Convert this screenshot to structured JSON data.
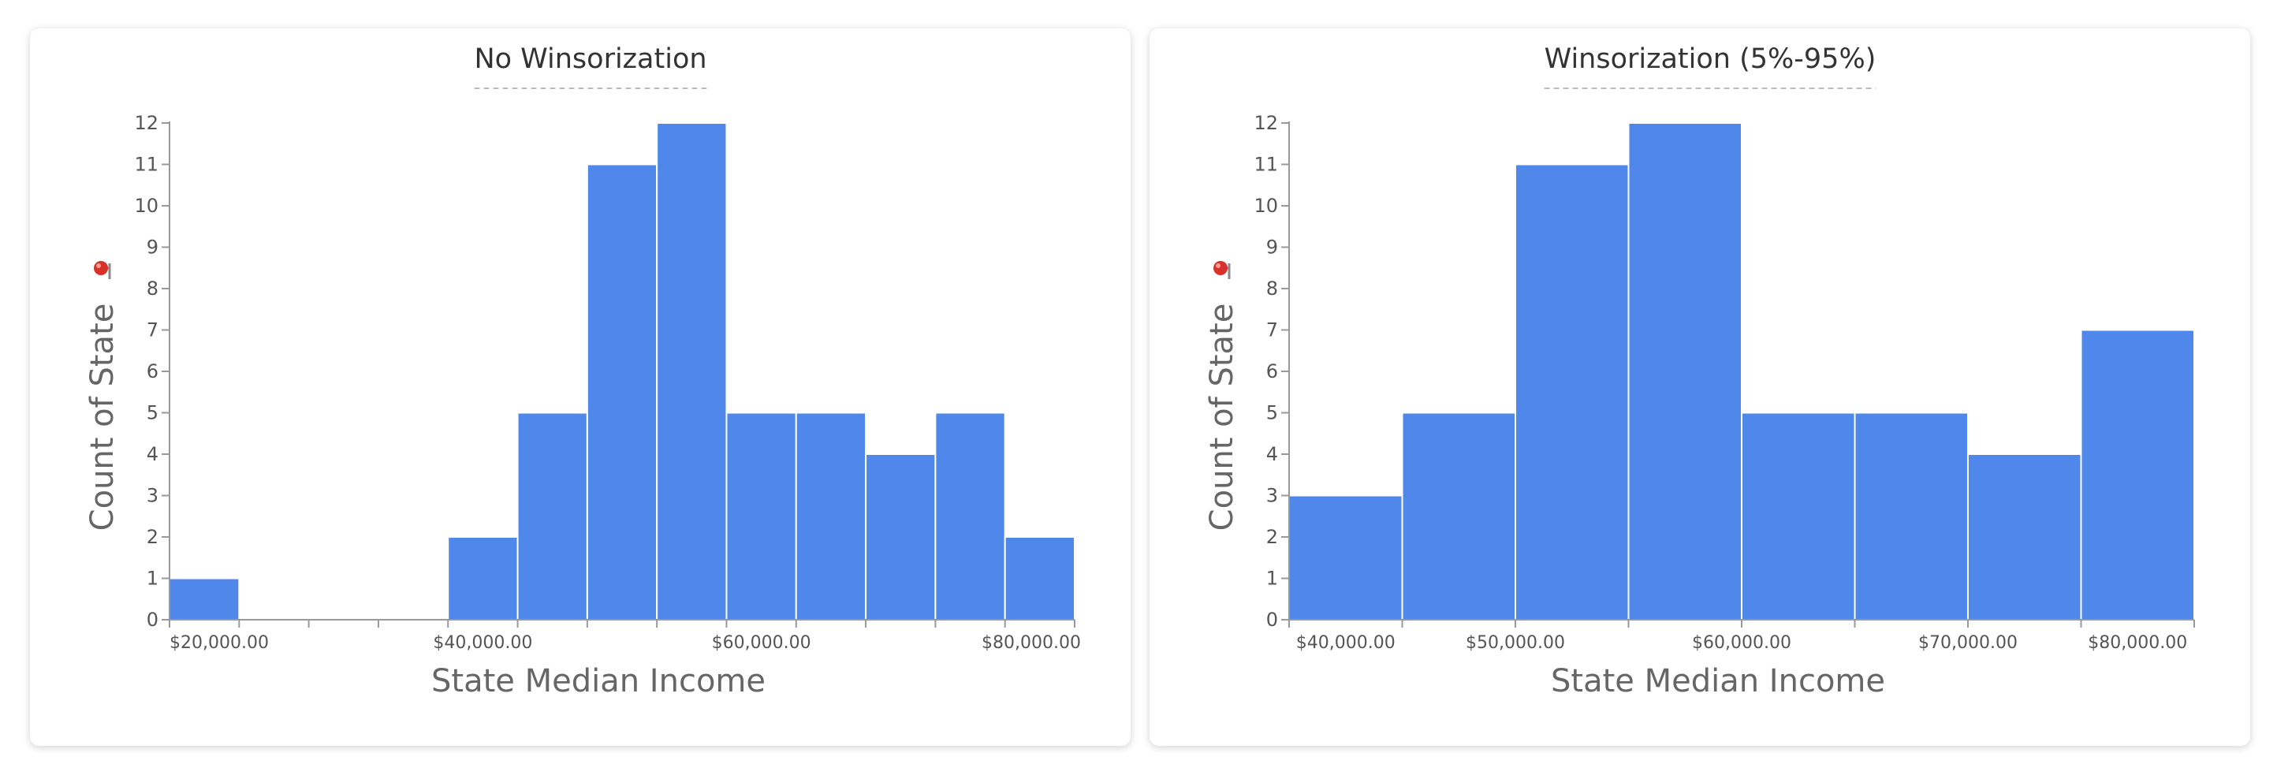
{
  "chart_data": [
    {
      "type": "bar",
      "title": "No Winsorization",
      "xlabel": "State Median Income",
      "ylabel": "Count of State",
      "color": "#4f88ea",
      "ylim": [
        0,
        12
      ],
      "yticks": [
        0,
        1,
        2,
        3,
        4,
        5,
        6,
        7,
        8,
        9,
        10,
        11,
        12
      ],
      "xlim": [
        15000,
        80000
      ],
      "bin_width": 5000,
      "bins": [
        {
          "x0": 15000,
          "x1": 20000,
          "count": 1
        },
        {
          "x0": 20000,
          "x1": 25000,
          "count": 0
        },
        {
          "x0": 25000,
          "x1": 30000,
          "count": 0
        },
        {
          "x0": 30000,
          "x1": 35000,
          "count": 0
        },
        {
          "x0": 35000,
          "x1": 40000,
          "count": 2
        },
        {
          "x0": 40000,
          "x1": 45000,
          "count": 5
        },
        {
          "x0": 45000,
          "x1": 50000,
          "count": 11
        },
        {
          "x0": 50000,
          "x1": 55000,
          "count": 12
        },
        {
          "x0": 55000,
          "x1": 60000,
          "count": 5
        },
        {
          "x0": 60000,
          "x1": 65000,
          "count": 5
        },
        {
          "x0": 65000,
          "x1": 70000,
          "count": 4
        },
        {
          "x0": 70000,
          "x1": 75000,
          "count": 5
        },
        {
          "x0": 75000,
          "x1": 80000,
          "count": 2
        }
      ],
      "xtick_values": [
        15000,
        20000,
        25000,
        30000,
        35000,
        40000,
        45000,
        50000,
        55000,
        60000,
        65000,
        70000,
        75000,
        80000
      ],
      "xtick_labels": [
        {
          "value": 17500,
          "label": "$20,000.00"
        },
        {
          "value": 37500,
          "label": "$40,000.00"
        },
        {
          "value": 57500,
          "label": "$60,000.00"
        },
        {
          "value": 77500,
          "label": "$80,000.00"
        }
      ]
    },
    {
      "type": "bar",
      "title": "Winsorization (5%-95%)",
      "xlabel": "State Median Income",
      "ylabel": "Count of State",
      "color": "#4f88ea",
      "ylim": [
        0,
        12
      ],
      "yticks": [
        0,
        1,
        2,
        3,
        4,
        5,
        6,
        7,
        8,
        9,
        10,
        11,
        12
      ],
      "xlim": [
        40000,
        80000
      ],
      "bin_width": 5000,
      "bins": [
        {
          "x0": 40000,
          "x1": 45000,
          "count": 3
        },
        {
          "x0": 45000,
          "x1": 50000,
          "count": 5
        },
        {
          "x0": 50000,
          "x1": 55000,
          "count": 11
        },
        {
          "x0": 55000,
          "x1": 60000,
          "count": 12
        },
        {
          "x0": 60000,
          "x1": 65000,
          "count": 5
        },
        {
          "x0": 65000,
          "x1": 70000,
          "count": 5
        },
        {
          "x0": 70000,
          "x1": 75000,
          "count": 4
        },
        {
          "x0": 75000,
          "x1": 80000,
          "count": 7
        }
      ],
      "xtick_values": [
        40000,
        45000,
        50000,
        55000,
        60000,
        65000,
        70000,
        75000,
        80000
      ],
      "xtick_labels": [
        {
          "value": 42500,
          "label": "$40,000.00"
        },
        {
          "value": 50000,
          "label": "$50,000.00"
        },
        {
          "value": 60000,
          "label": "$60,000.00"
        },
        {
          "value": 70000,
          "label": "$70,000.00"
        },
        {
          "value": 77500,
          "label": "$80,000.00"
        }
      ]
    }
  ],
  "icons": {
    "pin": "pin-icon"
  }
}
